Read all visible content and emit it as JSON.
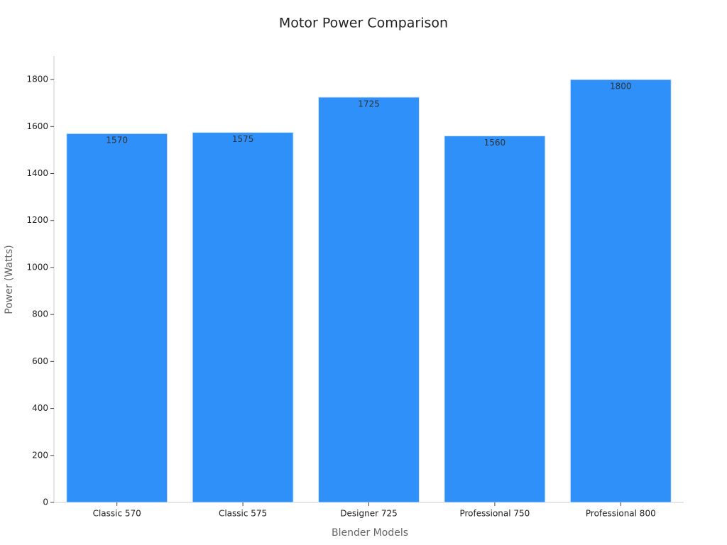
{
  "chart_data": {
    "type": "bar",
    "title": "Motor Power Comparison",
    "x_label": "Blender Models",
    "y_label": "Power (Watts)",
    "categories": [
      "Classic 570",
      "Classic 575",
      "Designer 725",
      "Professional 750",
      "Professional 800"
    ],
    "values": [
      1570,
      1575,
      1725,
      1560,
      1800
    ],
    "color": "#2e90f8",
    "ylim": [
      0,
      1900
    ],
    "yticks": [
      0,
      200,
      400,
      600,
      800,
      1000,
      1200,
      1400,
      1600,
      1800
    ],
    "grid": false
  }
}
